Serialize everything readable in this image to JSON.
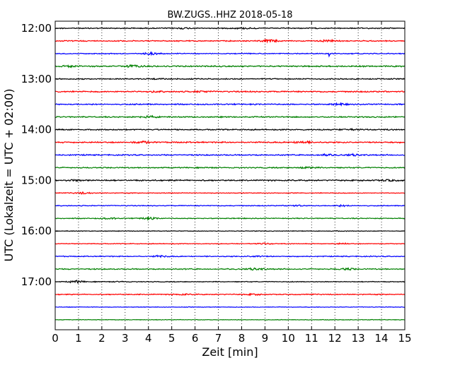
{
  "chart_data": {
    "type": "line",
    "title": "BW.ZUGS..HHZ 2018-05-18",
    "xlabel": "Zeit  [min]",
    "ylabel": "UTC (Lokalzeit = UTC + 02:00)",
    "xlim": [
      0,
      15
    ],
    "x_ticks": [
      "0",
      "1",
      "2",
      "3",
      "4",
      "5",
      "6",
      "7",
      "8",
      "9",
      "10",
      "11",
      "12",
      "13",
      "14",
      "15"
    ],
    "y_tick_labels": [
      "12:00",
      "13:00",
      "14:00",
      "15:00",
      "16:00",
      "17:00"
    ],
    "grid": "vertical dotted",
    "trace_colors": [
      "#000000",
      "#ff0000",
      "#0000ff",
      "#008000"
    ],
    "traces": [
      {
        "start": "12:00",
        "amplitude": 0.35,
        "events": [
          {
            "t": 5.5,
            "a": 0.4
          },
          {
            "t": 8.1,
            "a": 0.4
          }
        ]
      },
      {
        "start": "12:15",
        "amplitude": 0.35,
        "events": [
          {
            "t": 9.2,
            "a": 1.0
          },
          {
            "t": 11.7,
            "a": 0.6
          }
        ]
      },
      {
        "start": "12:30",
        "amplitude": 0.3,
        "events": [
          {
            "t": 4.2,
            "a": 0.9
          },
          {
            "t": 11.75,
            "a": 4.5
          }
        ]
      },
      {
        "start": "12:45",
        "amplitude": 0.45,
        "events": [
          {
            "t": 3.3,
            "a": 0.8
          },
          {
            "t": 0.6,
            "a": 0.5
          }
        ]
      },
      {
        "start": "13:00",
        "amplitude": 0.35,
        "events": [
          {
            "t": 4.6,
            "a": 0.4
          }
        ]
      },
      {
        "start": "13:15",
        "amplitude": 0.45,
        "events": [
          {
            "t": 4.3,
            "a": 0.5
          },
          {
            "t": 6.3,
            "a": 0.5
          }
        ]
      },
      {
        "start": "13:30",
        "amplitude": 0.4,
        "events": [
          {
            "t": 12.2,
            "a": 0.5
          }
        ]
      },
      {
        "start": "13:45",
        "amplitude": 0.4,
        "events": [
          {
            "t": 4.0,
            "a": 0.7
          }
        ]
      },
      {
        "start": "14:00",
        "amplitude": 0.4,
        "events": [
          {
            "t": 12.6,
            "a": 0.5
          }
        ]
      },
      {
        "start": "14:15",
        "amplitude": 0.45,
        "events": [
          {
            "t": 3.8,
            "a": 0.7
          },
          {
            "t": 10.6,
            "a": 0.8
          }
        ]
      },
      {
        "start": "14:30",
        "amplitude": 0.4,
        "events": [
          {
            "t": 11.6,
            "a": 0.5
          },
          {
            "t": 12.8,
            "a": 0.6
          }
        ]
      },
      {
        "start": "14:45",
        "amplitude": 0.35,
        "events": [
          {
            "t": 10.8,
            "a": 0.5
          }
        ]
      },
      {
        "start": "15:00",
        "amplitude": 0.45,
        "events": [
          {
            "t": 0.8,
            "a": 0.5
          },
          {
            "t": 14.3,
            "a": 0.5
          }
        ]
      },
      {
        "start": "15:15",
        "amplitude": 0.2,
        "events": [
          {
            "t": 1.2,
            "a": 0.7
          }
        ]
      },
      {
        "start": "15:30",
        "amplitude": 0.25,
        "events": [
          {
            "t": 10.3,
            "a": 0.5
          },
          {
            "t": 12.3,
            "a": 0.5
          }
        ]
      },
      {
        "start": "15:45",
        "amplitude": 0.25,
        "events": [
          {
            "t": 4.0,
            "a": 0.8
          },
          {
            "t": 2.3,
            "a": 0.5
          }
        ]
      },
      {
        "start": "16:00",
        "amplitude": 0.12,
        "events": [
          {
            "t": 12.2,
            "a": 0.2
          }
        ]
      },
      {
        "start": "16:15",
        "amplitude": 0.2,
        "events": [
          {
            "t": 9.0,
            "a": 0.5
          },
          {
            "t": 12.3,
            "a": 0.4
          }
        ]
      },
      {
        "start": "16:30",
        "amplitude": 0.3,
        "events": [
          {
            "t": 4.5,
            "a": 0.6
          },
          {
            "t": 8.7,
            "a": 0.6
          }
        ]
      },
      {
        "start": "16:45",
        "amplitude": 0.35,
        "events": [
          {
            "t": 8.6,
            "a": 0.7
          },
          {
            "t": 12.5,
            "a": 0.6
          }
        ]
      },
      {
        "start": "17:00",
        "amplitude": 0.2,
        "events": [
          {
            "t": 0.9,
            "a": 0.9
          },
          {
            "t": 2.9,
            "a": 0.3
          }
        ]
      },
      {
        "start": "17:15",
        "amplitude": 0.3,
        "events": [
          {
            "t": 5.4,
            "a": 0.4
          },
          {
            "t": 8.5,
            "a": 0.4
          }
        ]
      },
      {
        "start": "17:30",
        "amplitude": 0.1,
        "events": []
      },
      {
        "start": "17:45",
        "amplitude": 0.1,
        "events": []
      }
    ]
  }
}
